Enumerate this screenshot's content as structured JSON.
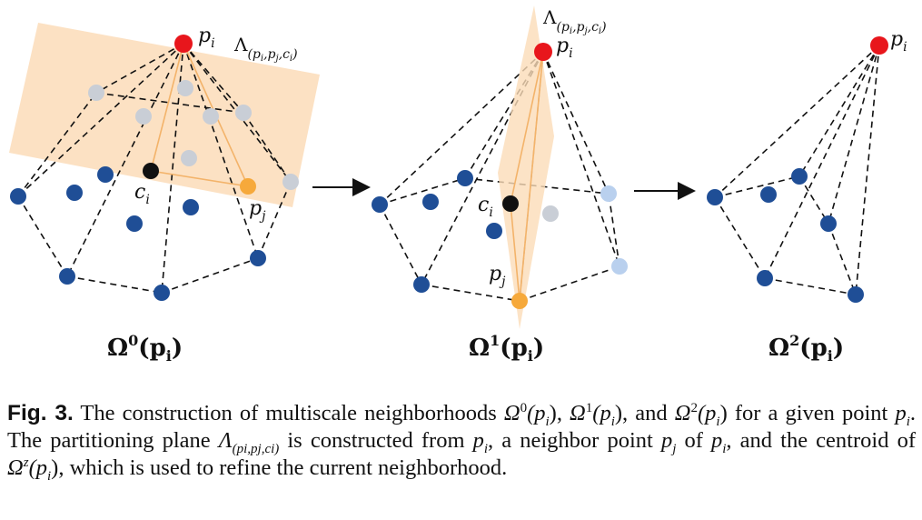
{
  "panels": [
    {
      "name": "omega0",
      "label_base": "Ω",
      "label_sup": "0",
      "label_arg": "(p",
      "label_sub": "i",
      "label_close": ")",
      "point_labels": {
        "pi": "p",
        "pi_sub": "i",
        "ci": "c",
        "ci_sub": "i",
        "pj": "p",
        "pj_sub": "j"
      },
      "plane_label": {
        "main": "Λ",
        "sub": "(p",
        "sub_i": "i",
        "sub_mid": ",p",
        "sub_j": "j",
        "sub_mid2": ",c",
        "sub_ci": "i",
        "sub_close": ")"
      }
    },
    {
      "name": "omega1",
      "label_base": "Ω",
      "label_sup": "1",
      "label_arg": "(p",
      "label_sub": "i",
      "label_close": ")",
      "point_labels": {
        "pi": "p",
        "pi_sub": "i",
        "ci": "c",
        "ci_sub": "i",
        "pj": "p",
        "pj_sub": "j"
      },
      "plane_label": {
        "main": "Λ",
        "sub": "(p",
        "sub_i": "i",
        "sub_mid": ",p",
        "sub_j": "j",
        "sub_mid2": ",c",
        "sub_ci": "i",
        "sub_close": ")"
      }
    },
    {
      "name": "omega2",
      "label_base": "Ω",
      "label_sup": "2",
      "label_arg": "(p",
      "label_sub": "i",
      "label_close": ")",
      "point_labels": {
        "pi": "p",
        "pi_sub": "i"
      }
    }
  ],
  "colors": {
    "apex": "#e8161c",
    "neighbor": "#1f4e96",
    "removed": "#c9ced6",
    "light_blue": "#b9d0ee",
    "pj": "#f6a93b",
    "centroid": "#111111",
    "plane": "#fbdcb8",
    "plane_edge": "#f3b36a"
  },
  "caption": {
    "fig_label": "Fig. 3.",
    "t1": " The construction of multiscale neighborhoods ",
    "o0": "Ω",
    "o0_sup": "0",
    "o0_arg": "(p",
    "o0_sub": "i",
    "o0_close": "),",
    "o1": " Ω",
    "o1_sup": "1",
    "o1_arg": "(p",
    "o1_sub": "i",
    "o1_close": "),",
    "t2": " and ",
    "o2": "Ω",
    "o2_sup": "2",
    "o2_arg": "(p",
    "o2_sub": "i",
    "o2_close": ")",
    "t3": " for a given point ",
    "p1": "p",
    "p1_sub": "i",
    "t4": ". The partitioning plane ",
    "lam": "Λ",
    "lam_sub": "(pi,pj,ci)",
    "t5": " is constructed from ",
    "p2": "p",
    "p2_sub": "i",
    "t6": ", a neighbor point ",
    "p3": "p",
    "p3_sub": "j",
    "t7": " of ",
    "p4": "p",
    "p4_sub": "i",
    "t8": ", and the centroid of ",
    "oz": "Ω",
    "oz_sup": "z",
    "oz_arg": "(p",
    "oz_sub": "i",
    "oz_close": "),",
    "t9": " which is used to refine the current neighborhood."
  }
}
